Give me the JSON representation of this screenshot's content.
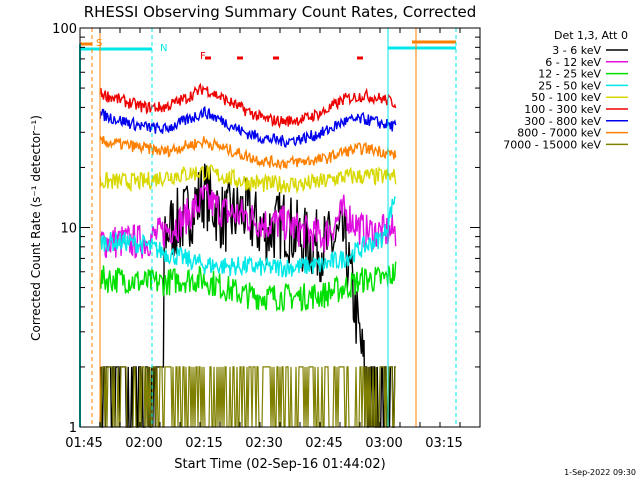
{
  "chart_data": {
    "type": "line",
    "title": "RHESSI Observing Summary Count Rates, Corrected",
    "xlabel": "Start Time (02-Sep-16 01:44:02)",
    "ylabel": "Corrected Count Rate (s⁻¹ detector⁻¹)",
    "yscale": "log",
    "ylim": [
      1,
      100
    ],
    "xlim": [
      "01:44",
      "03:24"
    ],
    "x_ticks": [
      "01:45",
      "02:00",
      "02:15",
      "02:30",
      "02:45",
      "03:00",
      "03:15"
    ],
    "y_ticks": [
      "1",
      "10",
      "100"
    ],
    "legend_title": "Det 1,3, Att 0",
    "legend_position": "right",
    "timestamp": "1-Sep-2022 09:30",
    "flags": {
      "saa_label": "S",
      "night_label": "N",
      "flare_label": "F"
    },
    "series": [
      {
        "name": "3 - 6 keV",
        "color": "#000000",
        "x": [
          "01:49",
          "01:55",
          "02:00",
          "02:05",
          "02:10",
          "02:15",
          "02:20",
          "02:25",
          "02:30",
          "02:35",
          "02:40",
          "02:45",
          "02:50",
          "02:55",
          "03:00",
          "03:03"
        ],
        "values": [
          2,
          2,
          2,
          9.5,
          11,
          15,
          11,
          12,
          9.5,
          10.5,
          8.5,
          8,
          9,
          2,
          2,
          2
        ]
      },
      {
        "name": "6 - 12 keV",
        "color": "#e010e0",
        "x": [
          "01:49",
          "01:55",
          "02:00",
          "02:05",
          "02:10",
          "02:15",
          "02:20",
          "02:25",
          "02:30",
          "02:35",
          "02:40",
          "02:45",
          "02:50",
          "02:55",
          "03:00",
          "03:03"
        ],
        "values": [
          8.5,
          8.5,
          8.5,
          9.5,
          11,
          14,
          12,
          11.5,
          10.5,
          10.5,
          9.5,
          9,
          12,
          9.5,
          9.5,
          9.5
        ]
      },
      {
        "name": "12 - 25 keV",
        "color": "#00e000",
        "x": [
          "01:49",
          "01:55",
          "02:00",
          "02:05",
          "02:10",
          "02:15",
          "02:20",
          "02:25",
          "02:30",
          "02:35",
          "02:40",
          "02:45",
          "02:50",
          "02:55",
          "03:00",
          "03:03"
        ],
        "values": [
          5.5,
          5.5,
          5.3,
          5.3,
          5.5,
          5.5,
          5,
          4.6,
          4.5,
          4.5,
          4.5,
          4.6,
          5,
          5.5,
          5.5,
          6
        ]
      },
      {
        "name": "25 - 50 keV",
        "color": "#00e8e8",
        "x": [
          "01:49",
          "01:55",
          "02:00",
          "02:05",
          "02:10",
          "02:15",
          "02:20",
          "02:25",
          "02:30",
          "02:35",
          "02:40",
          "02:45",
          "02:50",
          "02:55",
          "03:00",
          "03:03"
        ],
        "values": [
          8.5,
          8.5,
          8.2,
          7.5,
          7,
          6.5,
          6.4,
          6.4,
          6.3,
          6.3,
          6.4,
          6.5,
          7,
          8,
          9,
          15
        ]
      },
      {
        "name": "50 - 100 keV",
        "color": "#d8d800",
        "x": [
          "01:49",
          "01:55",
          "02:00",
          "02:05",
          "02:10",
          "02:15",
          "02:20",
          "02:25",
          "02:30",
          "02:35",
          "02:40",
          "02:45",
          "02:50",
          "02:55",
          "03:00",
          "03:03"
        ],
        "values": [
          17,
          17,
          17,
          18,
          18.5,
          19,
          18,
          17,
          16.5,
          16.5,
          16.5,
          17,
          18,
          18,
          18,
          18
        ]
      },
      {
        "name": "100 - 300 keV",
        "color": "#ee0000",
        "x": [
          "01:49",
          "01:55",
          "02:00",
          "02:05",
          "02:10",
          "02:15",
          "02:20",
          "02:25",
          "02:30",
          "02:35",
          "02:40",
          "02:45",
          "02:50",
          "02:55",
          "03:00",
          "03:03"
        ],
        "values": [
          47,
          43,
          40,
          40,
          44,
          50,
          44,
          39,
          35,
          34,
          35,
          38,
          44,
          46,
          44,
          42
        ]
      },
      {
        "name": "300 - 800 keV",
        "color": "#0000ee",
        "x": [
          "01:49",
          "01:55",
          "02:00",
          "02:05",
          "02:10",
          "02:15",
          "02:20",
          "02:25",
          "02:30",
          "02:35",
          "02:40",
          "02:45",
          "02:50",
          "02:55",
          "03:00",
          "03:03"
        ],
        "values": [
          37,
          34,
          32,
          31,
          34,
          38,
          34,
          30,
          28,
          27,
          28,
          30,
          34,
          35,
          33,
          32
        ]
      },
      {
        "name": "800 - 7000 keV",
        "color": "#ff8000",
        "x": [
          "01:49",
          "01:55",
          "02:00",
          "02:05",
          "02:10",
          "02:15",
          "02:20",
          "02:25",
          "02:30",
          "02:35",
          "02:40",
          "02:45",
          "02:50",
          "02:55",
          "03:00",
          "03:03"
        ],
        "values": [
          27,
          26,
          25,
          24,
          25.5,
          27,
          25,
          23,
          21.5,
          21,
          21.5,
          22,
          24,
          25,
          24,
          23
        ]
      },
      {
        "name": "7000 - 15000 keV",
        "color": "#808000",
        "x": [
          "01:49",
          "01:55",
          "02:00",
          "02:05",
          "02:10",
          "02:15",
          "02:20",
          "02:25",
          "02:30",
          "02:35",
          "02:40",
          "02:45",
          "02:50",
          "02:55",
          "03:00",
          "03:03"
        ],
        "values": [
          2,
          2,
          2,
          2,
          2,
          2,
          2,
          2,
          2,
          2,
          2,
          2,
          2,
          2,
          2,
          2
        ]
      }
    ]
  }
}
